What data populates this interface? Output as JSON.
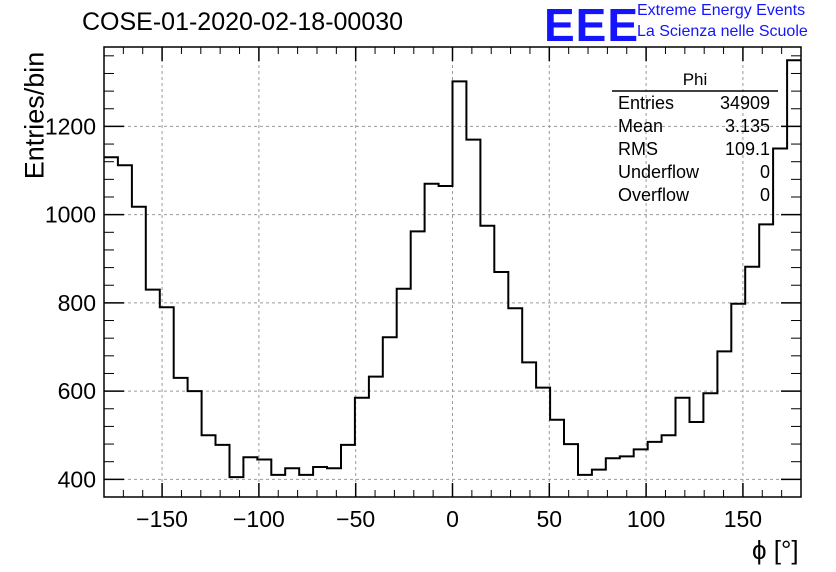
{
  "title": "COSE-01-2020-02-18-00030",
  "logo": {
    "mark": "EEE",
    "line1": "Extreme Energy Events",
    "line2": "La Scienza nelle Scuole"
  },
  "colors": {
    "logo": "#1414ff",
    "histogram": "#000000",
    "grid": "#9a9a9a"
  },
  "stats": {
    "name": "Phi",
    "rows": [
      {
        "label": "Entries",
        "value": "34909"
      },
      {
        "label": "Mean",
        "value": "3.135"
      },
      {
        "label": "RMS",
        "value": "109.1"
      },
      {
        "label": "Underflow",
        "value": "0"
      },
      {
        "label": "Overflow",
        "value": "0"
      }
    ]
  },
  "chart_data": {
    "type": "bar",
    "style": "step histogram",
    "xlabel": "ϕ [°]",
    "ylabel": "Entries/bin",
    "xlim": [
      -180,
      180
    ],
    "ylim": [
      360,
      1380
    ],
    "grid": true,
    "bin_width": 7.2,
    "x_ticks": [
      -150,
      -100,
      -50,
      0,
      50,
      100,
      150
    ],
    "y_ticks": [
      400,
      600,
      800,
      1000,
      1200
    ],
    "tick_labels_x": [
      "−150",
      "−100",
      "−50",
      "0",
      "50",
      "100",
      "150"
    ],
    "tick_labels_y": [
      "400",
      "600",
      "800",
      "1000",
      "1200"
    ],
    "bin_edges_start": -180,
    "values": [
      1130,
      1112,
      1018,
      830,
      790,
      630,
      600,
      500,
      478,
      405,
      450,
      445,
      410,
      425,
      410,
      428,
      425,
      478,
      585,
      633,
      722,
      832,
      962,
      1070,
      1065,
      1302,
      1170,
      975,
      870,
      788,
      665,
      608,
      535,
      480,
      410,
      422,
      448,
      452,
      468,
      485,
      500,
      585,
      530,
      595,
      690,
      798,
      882,
      978,
      1150,
      1350
    ]
  }
}
